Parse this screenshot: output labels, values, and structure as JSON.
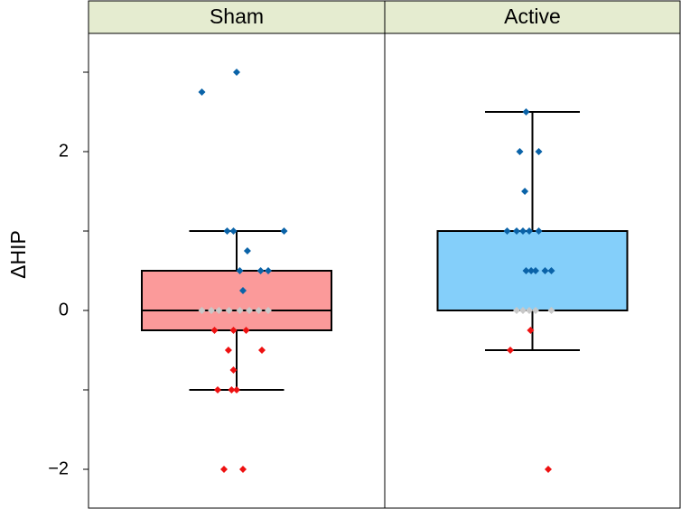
{
  "chart_data": {
    "type": "box",
    "ylabel": "ΔHIP",
    "xlabel": "",
    "ylim": [
      -2.5,
      3.5
    ],
    "yticks": [
      -2,
      -1,
      0,
      1,
      2,
      3
    ],
    "ytick_labels": {
      "-2": "−2",
      "0": "0",
      "2": "2"
    },
    "grid": false,
    "legend": "none",
    "colors": {
      "strip_bg": "#e5ecd0",
      "positive_point": "#0a63a8",
      "negative_point": "#ee1111",
      "zero_point": "#c8c8c8"
    },
    "panels": [
      {
        "label": "Sham",
        "box_color": "#fb9a9a",
        "box": {
          "whisker_low": -1.0,
          "q1": -0.25,
          "median": 0.0,
          "q3": 0.5,
          "whisker_high": 1.0
        },
        "points": [
          {
            "x": -0.55,
            "y": 2.75
          },
          {
            "x": 0.0,
            "y": 3.0
          },
          {
            "x": -0.15,
            "y": 1.0
          },
          {
            "x": -0.05,
            "y": 1.0
          },
          {
            "x": 0.75,
            "y": 1.0
          },
          {
            "x": 0.17,
            "y": 0.75
          },
          {
            "x": 0.05,
            "y": 0.5
          },
          {
            "x": 0.38,
            "y": 0.5
          },
          {
            "x": 0.5,
            "y": 0.5
          },
          {
            "x": 0.1,
            "y": 0.25
          },
          {
            "x": -0.55,
            "y": 0.0
          },
          {
            "x": -0.4,
            "y": 0.0
          },
          {
            "x": -0.28,
            "y": 0.0
          },
          {
            "x": -0.12,
            "y": 0.0
          },
          {
            "x": 0.05,
            "y": 0.0
          },
          {
            "x": 0.2,
            "y": 0.0
          },
          {
            "x": 0.35,
            "y": 0.0
          },
          {
            "x": 0.5,
            "y": 0.0
          },
          {
            "x": -0.35,
            "y": -0.25
          },
          {
            "x": -0.05,
            "y": -0.25
          },
          {
            "x": 0.15,
            "y": -0.25
          },
          {
            "x": -0.13,
            "y": -0.5
          },
          {
            "x": 0.4,
            "y": -0.5
          },
          {
            "x": -0.05,
            "y": -0.75
          },
          {
            "x": -0.3,
            "y": -1.0
          },
          {
            "x": -0.08,
            "y": -1.0
          },
          {
            "x": 0.0,
            "y": -1.0
          },
          {
            "x": -0.2,
            "y": -2.0
          },
          {
            "x": 0.1,
            "y": -2.0
          }
        ]
      },
      {
        "label": "Active",
        "box_color": "#84cffa",
        "box": {
          "whisker_low": -0.5,
          "q1": 0.0,
          "median": 0.0,
          "q3": 1.0,
          "whisker_high": 2.5
        },
        "points": [
          {
            "x": -0.1,
            "y": 2.5
          },
          {
            "x": -0.2,
            "y": 2.0
          },
          {
            "x": 0.1,
            "y": 2.0
          },
          {
            "x": -0.12,
            "y": 1.5
          },
          {
            "x": -0.4,
            "y": 1.0
          },
          {
            "x": -0.25,
            "y": 1.0
          },
          {
            "x": -0.15,
            "y": 1.0
          },
          {
            "x": -0.05,
            "y": 1.0
          },
          {
            "x": 0.1,
            "y": 1.0
          },
          {
            "x": -0.1,
            "y": 0.5
          },
          {
            "x": -0.02,
            "y": 0.5
          },
          {
            "x": 0.05,
            "y": 0.5
          },
          {
            "x": 0.2,
            "y": 0.5
          },
          {
            "x": 0.3,
            "y": 0.5
          },
          {
            "x": -0.25,
            "y": 0.0
          },
          {
            "x": -0.15,
            "y": 0.0
          },
          {
            "x": -0.05,
            "y": 0.0
          },
          {
            "x": 0.05,
            "y": 0.0
          },
          {
            "x": 0.3,
            "y": 0.0
          },
          {
            "x": -0.03,
            "y": -0.25
          },
          {
            "x": -0.35,
            "y": -0.5
          },
          {
            "x": 0.25,
            "y": -2.0
          }
        ]
      }
    ]
  }
}
